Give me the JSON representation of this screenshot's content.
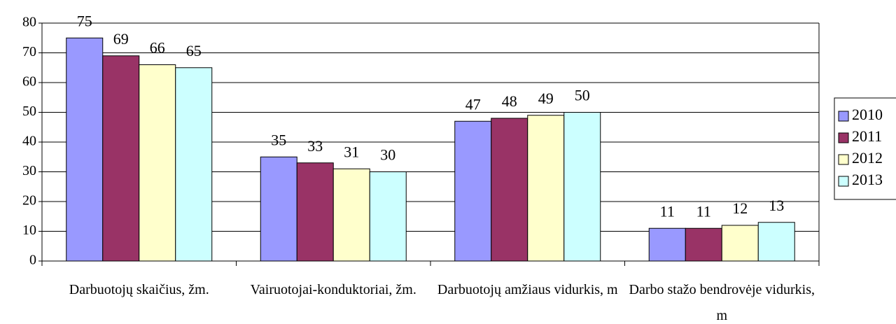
{
  "chart_data": {
    "type": "bar",
    "categories": [
      "Darbuotojų skaičius, žm.",
      "Vairuotojai-konduktoriai, žm.",
      "Darbuotojų amžiaus vidurkis, m",
      "Darbo stažo bendrovėje vidurkis, m"
    ],
    "series": [
      {
        "name": "2010",
        "color": "#9999ff",
        "values": [
          75,
          35,
          47,
          11
        ]
      },
      {
        "name": "2011",
        "color": "#993366",
        "values": [
          69,
          33,
          48,
          11
        ]
      },
      {
        "name": "2012",
        "color": "#ffffcc",
        "values": [
          66,
          31,
          49,
          12
        ]
      },
      {
        "name": "2013",
        "color": "#ccffff",
        "values": [
          65,
          30,
          50,
          13
        ]
      }
    ],
    "ylim": [
      0,
      80
    ],
    "yticks": [
      0,
      10,
      20,
      30,
      40,
      50,
      60,
      70,
      80
    ],
    "grid": true,
    "legend": "right"
  }
}
